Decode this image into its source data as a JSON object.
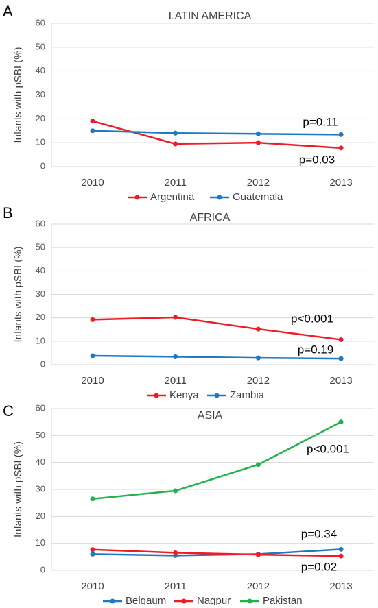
{
  "chart_data": [
    {
      "type": "line",
      "panel": "A",
      "title": "LATIN AMERICA",
      "y_label": "Infants with pSBI (%)",
      "categories": [
        "2010",
        "2011",
        "2012",
        "2013"
      ],
      "series": [
        {
          "name": "Argentina",
          "color": "#ee1c25",
          "values": [
            19,
            9.5,
            10,
            7.8
          ]
        },
        {
          "name": "Guatemala",
          "color": "#1f78c1",
          "values": [
            15,
            14,
            13.7,
            13.4
          ]
        }
      ],
      "ylim": [
        0,
        60
      ],
      "yticks": [
        0,
        10,
        20,
        30,
        40,
        50,
        60
      ],
      "grid": true,
      "annotations": [
        "p=0.11",
        "p=0.03"
      ]
    },
    {
      "type": "line",
      "panel": "B",
      "title": "AFRICA",
      "y_label": "Infants with pSBI (%)",
      "categories": [
        "2010",
        "2011",
        "2012",
        "2013"
      ],
      "series": [
        {
          "name": "Kenya",
          "color": "#ee1c25",
          "values": [
            19.2,
            20.2,
            15.2,
            10.7
          ]
        },
        {
          "name": "Zambia",
          "color": "#1f78c1",
          "values": [
            3.8,
            3.4,
            2.9,
            2.6
          ]
        }
      ],
      "ylim": [
        0,
        60
      ],
      "yticks": [
        0,
        10,
        20,
        30,
        40,
        50,
        60
      ],
      "grid": true,
      "annotations": [
        "p<0.001",
        "p=0.19"
      ]
    },
    {
      "type": "line",
      "panel": "C",
      "title": "ASIA",
      "y_label": "Infants with pSBI (%)",
      "categories": [
        "2010",
        "2011",
        "2012",
        "2013"
      ],
      "series": [
        {
          "name": "Belgaum",
          "color": "#1f78c1",
          "values": [
            6,
            5.5,
            6,
            7.8
          ]
        },
        {
          "name": "Nagpur",
          "color": "#ee1c25",
          "values": [
            7.7,
            6.5,
            5.8,
            5.3
          ]
        },
        {
          "name": "Pakistan",
          "color": "#22b14c",
          "values": [
            26.5,
            29.5,
            39.2,
            55
          ]
        }
      ],
      "ylim": [
        0,
        60
      ],
      "yticks": [
        0,
        10,
        20,
        30,
        40,
        50,
        60
      ],
      "grid": true,
      "annotations": [
        "p<0.001",
        "p=0.34",
        "p=0.02"
      ]
    }
  ]
}
